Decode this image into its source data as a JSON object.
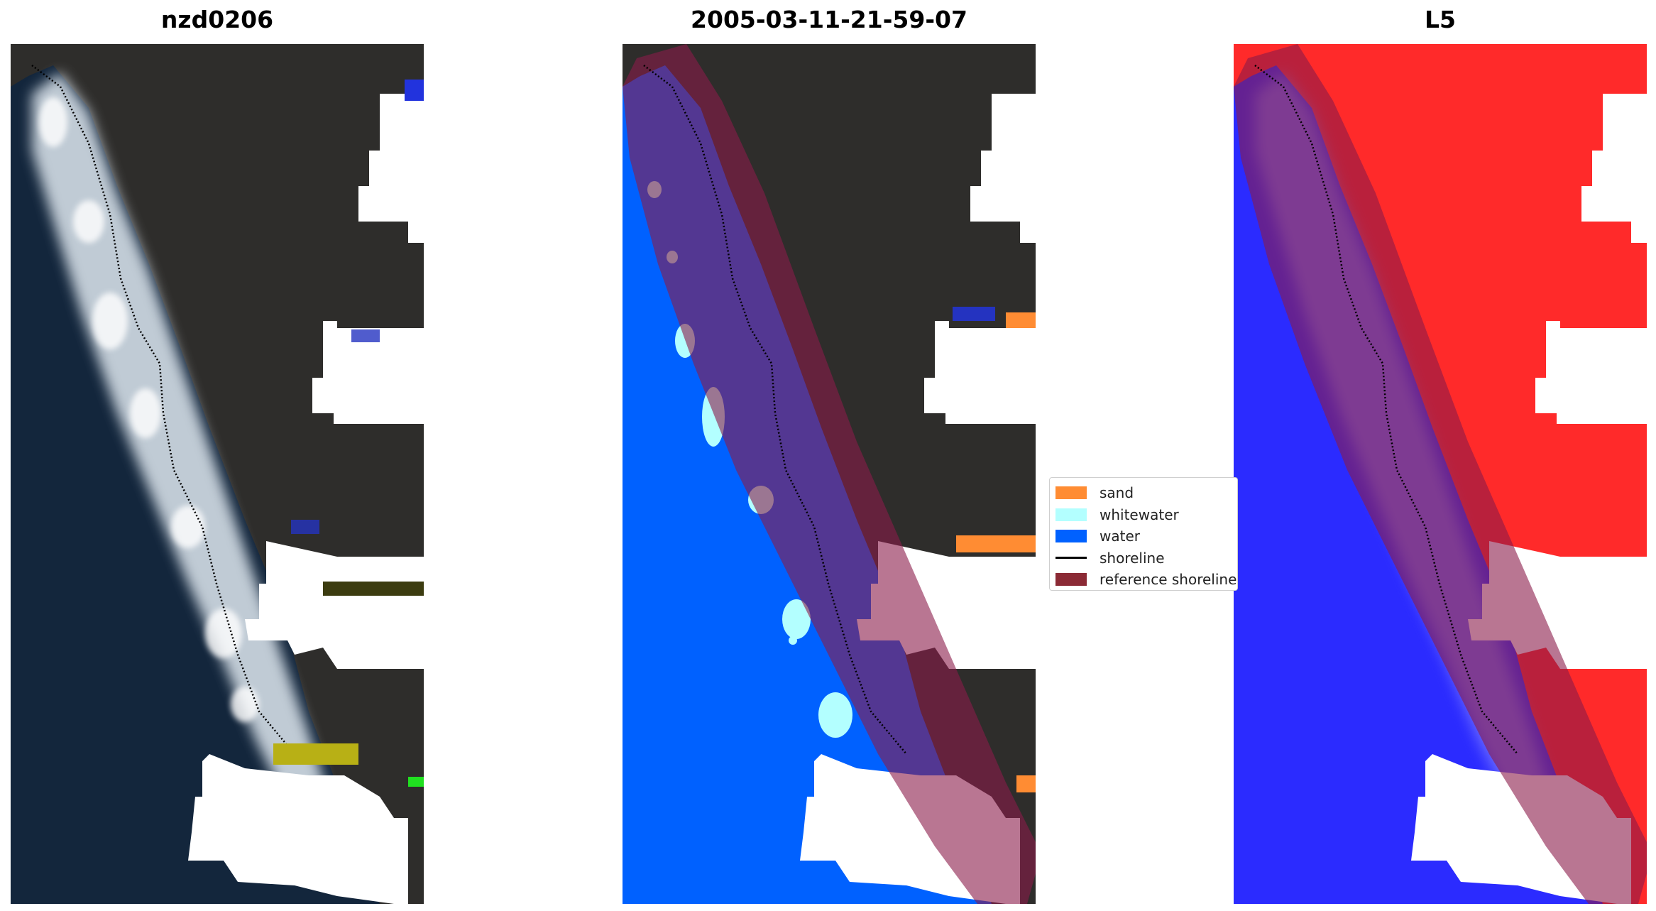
{
  "panels": [
    {
      "title": "nzd0206"
    },
    {
      "title": "2005-03-11-21-59-07"
    },
    {
      "title": "L5"
    }
  ],
  "legend": {
    "items": [
      {
        "label": "sand",
        "color": "#ff8c33",
        "kind": "patch"
      },
      {
        "label": "whitewater",
        "color": "#b3ffff",
        "kind": "patch"
      },
      {
        "label": "water",
        "color": "#0061ff",
        "kind": "patch"
      },
      {
        "label": "shoreline",
        "color": "#000000",
        "kind": "line"
      },
      {
        "label": "reference shoreline",
        "color": "#8b2a35",
        "kind": "patch"
      }
    ]
  },
  "colors": {
    "land": "#2c2b2a",
    "ocean": "#10233a",
    "surf": "#e8eef4",
    "water_class": "#0061ff",
    "buffer_overlay": "#8b1a4a",
    "index_water": "#2b2bff",
    "index_land": "#ff2a2a"
  }
}
